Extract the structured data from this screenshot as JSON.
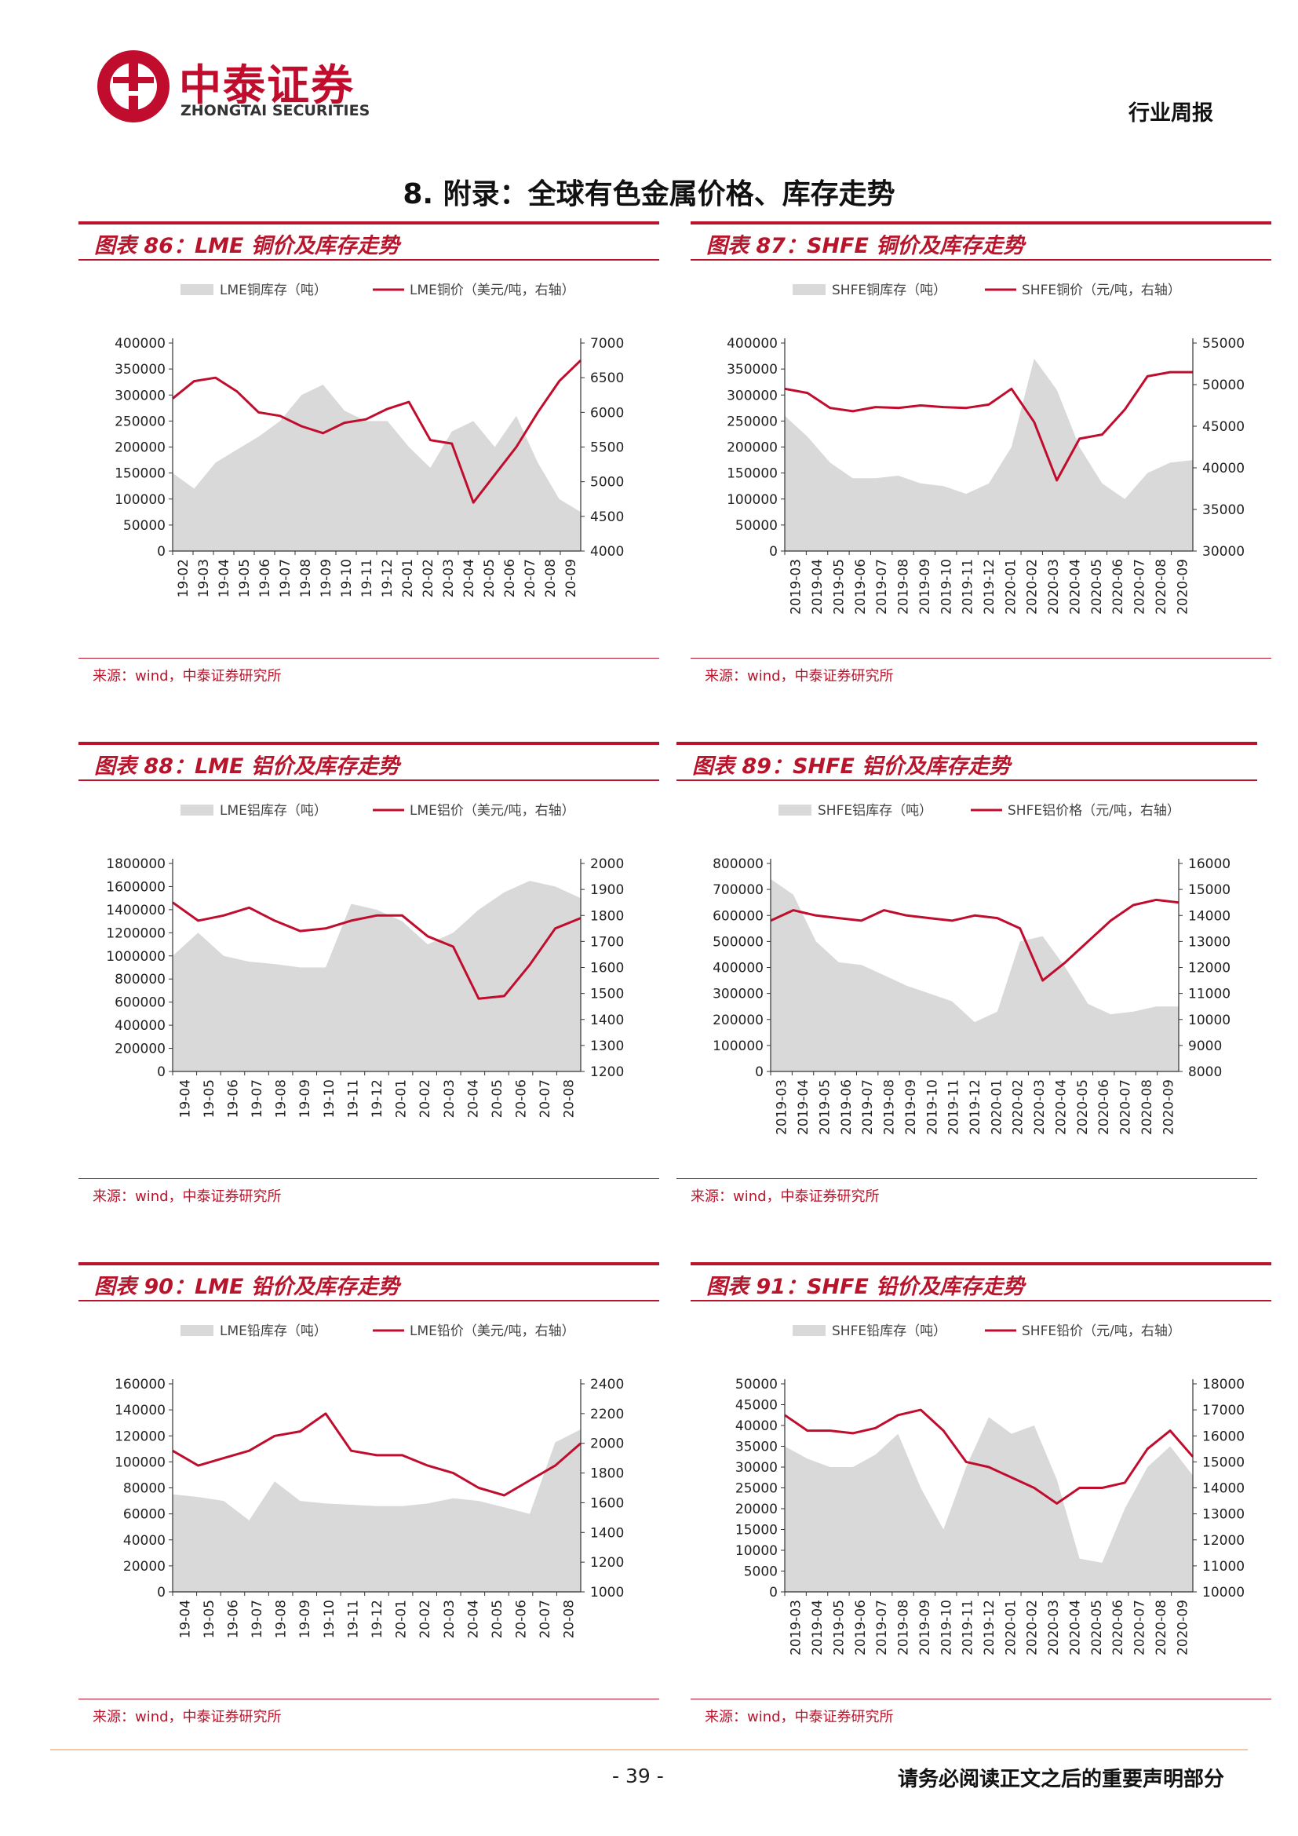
{
  "header": {
    "logo_cn": "中泰证券",
    "logo_en": "ZHONGTAI SECURITIES",
    "report_type": "行业周报"
  },
  "section_title": "8. 附录：全球有色金属价格、库存走势",
  "colors": {
    "inventory": "#d9d9d9",
    "price": "#c00d2e",
    "accent": "#b8142b"
  },
  "icons": {
    "logo": "zhongtai-logo-icon"
  },
  "charts": [
    {
      "title": "图表 86：LME 铜价及库存走势",
      "source": "来源：wind，中泰证券研究所",
      "chart_data": {
        "type": "area+line",
        "legend": [
          "LME铜库存（吨）",
          "LME铜价（美元/吨，右轴）"
        ],
        "legend_position": "top",
        "x_ticks": [
          "19-02",
          "19-03",
          "19-04",
          "19-05",
          "19-06",
          "19-07",
          "19-08",
          "19-09",
          "19-10",
          "19-11",
          "19-12",
          "20-01",
          "20-02",
          "20-03",
          "20-04",
          "20-05",
          "20-06",
          "20-07",
          "20-08",
          "20-09"
        ],
        "y_left": {
          "min": 0,
          "max": 400000,
          "ticks": [
            "0",
            "50000",
            "100000",
            "150000",
            "200000",
            "250000",
            "300000",
            "350000",
            "400000"
          ]
        },
        "y_right": {
          "min": 4000,
          "max": 7000,
          "ticks": [
            "4000",
            "4500",
            "5000",
            "5500",
            "6000",
            "6500",
            "7000"
          ]
        },
        "series": [
          {
            "name": "LME铜库存（吨）",
            "axis": "left",
            "kind": "area",
            "values": [
              150000,
              120000,
              170000,
              195000,
              220000,
              250000,
              300000,
              320000,
              270000,
              250000,
              250000,
              200000,
              160000,
              230000,
              250000,
              200000,
              260000,
              170000,
              100000,
              75000
            ]
          },
          {
            "name": "LME铜价（美元/吨，右轴）",
            "axis": "right",
            "kind": "line",
            "values": [
              6200,
              6450,
              6500,
              6300,
              6000,
              5950,
              5800,
              5700,
              5850,
              5900,
              6050,
              6150,
              5600,
              5550,
              4700,
              5100,
              5500,
              6000,
              6450,
              6750
            ]
          }
        ]
      }
    },
    {
      "title": "图表 87：SHFE 铜价及库存走势",
      "source": "来源：wind，中泰证券研究所",
      "chart_data": {
        "type": "area+line",
        "legend": [
          "SHFE铜库存（吨）",
          "SHFE铜价（元/吨，右轴）"
        ],
        "legend_position": "top",
        "x_ticks": [
          "2019-03",
          "2019-04",
          "2019-05",
          "2019-06",
          "2019-07",
          "2019-08",
          "2019-09",
          "2019-10",
          "2019-11",
          "2019-12",
          "2020-01",
          "2020-02",
          "2020-03",
          "2020-04",
          "2020-05",
          "2020-06",
          "2020-07",
          "2020-08",
          "2020-09"
        ],
        "y_left": {
          "min": 0,
          "max": 400000,
          "ticks": [
            "0",
            "50000",
            "100000",
            "150000",
            "200000",
            "250000",
            "300000",
            "350000",
            "400000"
          ]
        },
        "y_right": {
          "min": 30000,
          "max": 55000,
          "ticks": [
            "30000",
            "35000",
            "40000",
            "45000",
            "50000",
            "55000"
          ]
        },
        "series": [
          {
            "name": "SHFE铜库存（吨）",
            "axis": "left",
            "kind": "area",
            "values": [
              260000,
              220000,
              170000,
              140000,
              140000,
              145000,
              130000,
              125000,
              110000,
              130000,
              200000,
              370000,
              310000,
              200000,
              130000,
              100000,
              150000,
              170000,
              175000
            ]
          },
          {
            "name": "SHFE铜价（元/吨，右轴）",
            "axis": "right",
            "kind": "line",
            "values": [
              49500,
              49000,
              47200,
              46800,
              47300,
              47200,
              47500,
              47300,
              47200,
              47600,
              49500,
              45500,
              38500,
              43500,
              44000,
              47000,
              51000,
              51500,
              51500
            ]
          }
        ]
      }
    },
    {
      "title": "图表 88：LME 铝价及库存走势",
      "source": "来源：wind，中泰证券研究所",
      "chart_data": {
        "type": "area+line",
        "legend": [
          "LME铝库存（吨）",
          "LME铝价（美元/吨，右轴）"
        ],
        "legend_position": "top",
        "x_ticks": [
          "19-04",
          "19-05",
          "19-06",
          "19-07",
          "19-08",
          "19-09",
          "19-10",
          "19-11",
          "19-12",
          "20-01",
          "20-02",
          "20-03",
          "20-04",
          "20-05",
          "20-06",
          "20-07",
          "20-08"
        ],
        "y_left": {
          "min": 0,
          "max": 1800000,
          "ticks": [
            "0",
            "200000",
            "400000",
            "600000",
            "800000",
            "1000000",
            "1200000",
            "1400000",
            "1600000",
            "1800000"
          ]
        },
        "y_right": {
          "min": 1200,
          "max": 2000,
          "ticks": [
            "1200",
            "1300",
            "1400",
            "1500",
            "1600",
            "1700",
            "1800",
            "1900",
            "2000"
          ]
        },
        "series": [
          {
            "name": "LME铝库存（吨）",
            "axis": "left",
            "kind": "area",
            "values": [
              1000000,
              1200000,
              1000000,
              950000,
              930000,
              900000,
              900000,
              1450000,
              1400000,
              1300000,
              1100000,
              1200000,
              1400000,
              1550000,
              1650000,
              1600000,
              1500000
            ]
          },
          {
            "name": "LME铝价（美元/吨，右轴）",
            "axis": "right",
            "kind": "line",
            "values": [
              1850,
              1780,
              1800,
              1830,
              1780,
              1740,
              1750,
              1780,
              1800,
              1800,
              1720,
              1680,
              1480,
              1490,
              1610,
              1750,
              1790
            ]
          }
        ]
      }
    },
    {
      "title": "图表 89：SHFE 铝价及库存走势",
      "source": "来源：wind，中泰证券研究所",
      "chart_data": {
        "type": "area+line",
        "legend": [
          "SHFE铝库存（吨）",
          "SHFE铝价格（元/吨，右轴）"
        ],
        "legend_position": "top",
        "x_ticks": [
          "2019-03",
          "2019-04",
          "2019-05",
          "2019-06",
          "2019-07",
          "2019-08",
          "2019-09",
          "2019-10",
          "2019-11",
          "2019-12",
          "2020-01",
          "2020-02",
          "2020-03",
          "2020-04",
          "2020-05",
          "2020-06",
          "2020-07",
          "2020-08",
          "2020-09"
        ],
        "y_left": {
          "min": 0,
          "max": 800000,
          "ticks": [
            "0",
            "100000",
            "200000",
            "300000",
            "400000",
            "500000",
            "600000",
            "700000",
            "800000"
          ]
        },
        "y_right": {
          "min": 8000,
          "max": 16000,
          "ticks": [
            "8000",
            "9000",
            "10000",
            "11000",
            "12000",
            "13000",
            "14000",
            "15000",
            "16000"
          ]
        },
        "series": [
          {
            "name": "SHFE铝库存（吨）",
            "axis": "left",
            "kind": "area",
            "values": [
              740000,
              680000,
              500000,
              420000,
              410000,
              370000,
              330000,
              300000,
              270000,
              190000,
              230000,
              500000,
              520000,
              400000,
              260000,
              220000,
              230000,
              250000,
              250000
            ]
          },
          {
            "name": "SHFE铝价格（元/吨，右轴）",
            "axis": "right",
            "kind": "line",
            "values": [
              13800,
              14200,
              14000,
              13900,
              13800,
              14200,
              14000,
              13900,
              13800,
              14000,
              13900,
              13500,
              11500,
              12200,
              13000,
              13800,
              14400,
              14600,
              14500
            ]
          }
        ]
      }
    },
    {
      "title": "图表 90：LME 铅价及库存走势",
      "source": "来源：wind，中泰证券研究所",
      "chart_data": {
        "type": "area+line",
        "legend": [
          "LME铅库存（吨）",
          "LME铅价（美元/吨，右轴）"
        ],
        "legend_position": "top",
        "x_ticks": [
          "19-04",
          "19-05",
          "19-06",
          "19-07",
          "19-08",
          "19-09",
          "19-10",
          "19-11",
          "19-12",
          "20-01",
          "20-02",
          "20-03",
          "20-04",
          "20-05",
          "20-06",
          "20-07",
          "20-08"
        ],
        "y_left": {
          "min": 0,
          "max": 160000,
          "ticks": [
            "0",
            "20000",
            "40000",
            "60000",
            "80000",
            "100000",
            "120000",
            "140000",
            "160000"
          ]
        },
        "y_right": {
          "min": 1000,
          "max": 2400,
          "ticks": [
            "1000",
            "1200",
            "1400",
            "1600",
            "1800",
            "2000",
            "2200",
            "2400"
          ]
        },
        "series": [
          {
            "name": "LME铅库存（吨）",
            "axis": "left",
            "kind": "area",
            "values": [
              75000,
              73000,
              70000,
              55000,
              85000,
              70000,
              68000,
              67000,
              66000,
              66000,
              68000,
              72000,
              70000,
              65000,
              60000,
              115000,
              125000
            ]
          },
          {
            "name": "LME铅价（美元/吨，右轴）",
            "axis": "right",
            "kind": "line",
            "values": [
              1950,
              1850,
              1900,
              1950,
              2050,
              2080,
              2200,
              1950,
              1920,
              1920,
              1850,
              1800,
              1700,
              1650,
              1750,
              1850,
              2000
            ]
          }
        ]
      }
    },
    {
      "title": "图表 91：SHFE 铅价及库存走势",
      "source": "来源：wind，中泰证券研究所",
      "chart_data": {
        "type": "area+line",
        "legend": [
          "SHFE铅库存（吨）",
          "SHFE铅价（元/吨，右轴）"
        ],
        "legend_position": "top",
        "x_ticks": [
          "2019-03",
          "2019-04",
          "2019-05",
          "2019-06",
          "2019-07",
          "2019-08",
          "2019-09",
          "2019-10",
          "2019-11",
          "2019-12",
          "2020-01",
          "2020-02",
          "2020-03",
          "2020-04",
          "2020-05",
          "2020-06",
          "2020-07",
          "2020-08",
          "2020-09"
        ],
        "y_left": {
          "min": 0,
          "max": 50000,
          "ticks": [
            "0",
            "5000",
            "10000",
            "15000",
            "20000",
            "25000",
            "30000",
            "35000",
            "40000",
            "45000",
            "50000"
          ]
        },
        "y_right": {
          "min": 10000,
          "max": 18000,
          "ticks": [
            "10000",
            "11000",
            "12000",
            "13000",
            "14000",
            "15000",
            "16000",
            "17000",
            "18000"
          ]
        },
        "series": [
          {
            "name": "SHFE铅库存（吨）",
            "axis": "left",
            "kind": "area",
            "values": [
              35000,
              32000,
              30000,
              30000,
              33000,
              38000,
              25000,
              15000,
              30000,
              42000,
              38000,
              40000,
              27000,
              8000,
              7000,
              20000,
              30000,
              35000,
              28000
            ]
          },
          {
            "name": "SHFE铅价（元/吨，右轴）",
            "axis": "right",
            "kind": "line",
            "values": [
              16800,
              16200,
              16200,
              16100,
              16300,
              16800,
              17000,
              16200,
              15000,
              14800,
              14400,
              14000,
              13400,
              14000,
              14000,
              14200,
              15500,
              16200,
              15200
            ]
          }
        ]
      }
    }
  ],
  "footer": {
    "page_number": "- 39 -",
    "disclaimer": "请务必阅读正文之后的重要声明部分"
  }
}
